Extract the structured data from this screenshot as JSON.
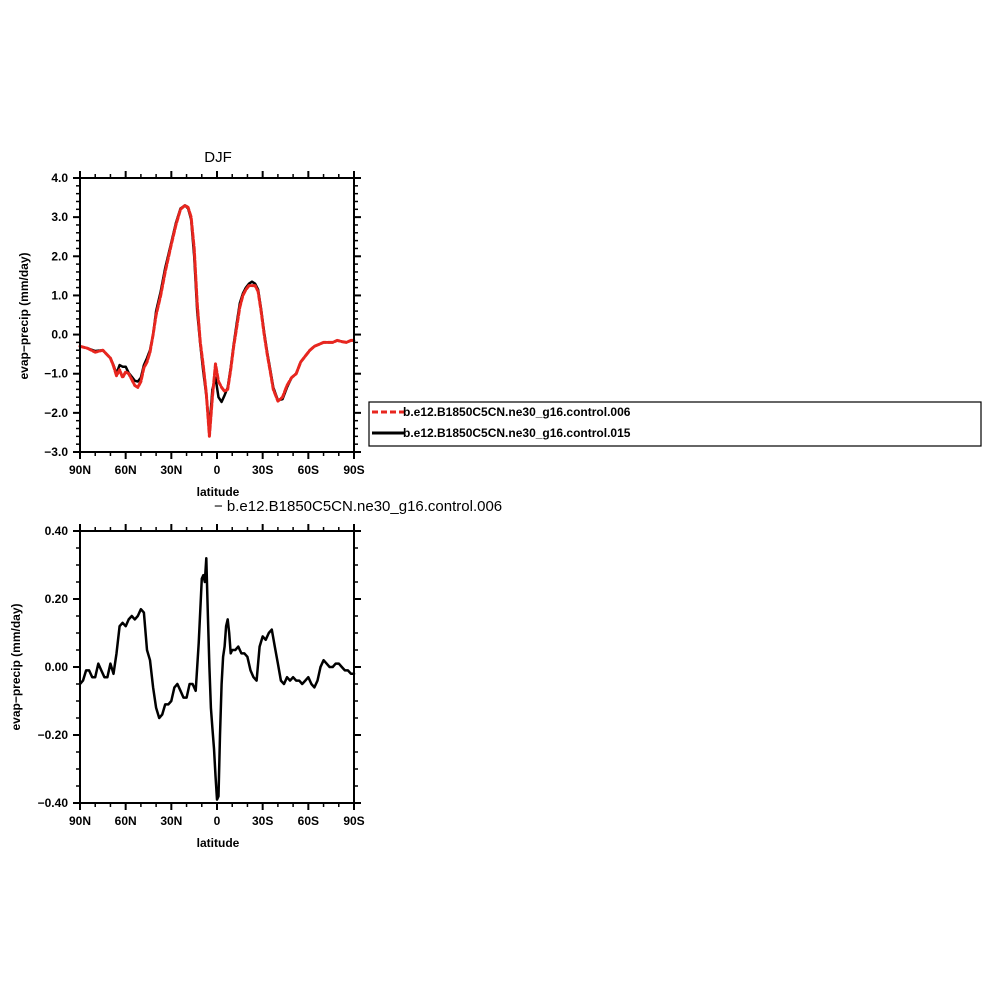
{
  "chart_data": [
    {
      "type": "line",
      "title": "DJF",
      "xlabel": "latitude",
      "ylabel": "evap−precip (mm/day)",
      "xlim": [
        90,
        -90
      ],
      "ylim": [
        -3.0,
        4.0
      ],
      "x_ticks": [
        90,
        60,
        30,
        0,
        -30,
        -60,
        -90
      ],
      "x_tick_labels": [
        "90N",
        "60N",
        "30N",
        "0",
        "30S",
        "60S",
        "90S"
      ],
      "y_ticks": [
        -3.0,
        -2.0,
        -1.0,
        0.0,
        1.0,
        2.0,
        3.0,
        4.0
      ],
      "y_tick_labels": [
        "−3.0",
        "−2.0",
        "−1.0",
        "0.0",
        "1.0",
        "2.0",
        "3.0",
        "4.0"
      ],
      "legend_position": "right",
      "series": [
        {
          "name": "b.e12.B1850C5CN.ne30_g16.control.006",
          "color": "#e8261f",
          "dashed": true,
          "x": [
            90,
            85,
            80,
            75,
            70,
            68,
            66,
            64,
            62,
            60,
            58,
            56,
            54,
            52,
            50,
            48,
            46,
            44,
            42,
            40,
            37,
            34,
            30,
            27,
            24,
            21,
            19,
            17,
            15,
            13,
            11,
            9,
            7,
            5,
            3,
            1,
            -1,
            -3,
            -5,
            -7,
            -9,
            -11,
            -13,
            -15,
            -17,
            -19,
            -21,
            -23,
            -25,
            -27,
            -29,
            -31,
            -33,
            -35,
            -37,
            -40,
            -43,
            -46,
            -49,
            -52,
            -55,
            -58,
            -61,
            -64,
            -67,
            -70,
            -73,
            -76,
            -79,
            -82,
            -85,
            -88,
            -90
          ],
          "y": [
            -0.3,
            -0.35,
            -0.45,
            -0.4,
            -0.6,
            -0.8,
            -1.05,
            -0.9,
            -1.1,
            -0.95,
            -1.0,
            -1.15,
            -1.3,
            -1.35,
            -1.2,
            -0.85,
            -0.7,
            -0.45,
            0.0,
            0.5,
            1.0,
            1.6,
            2.3,
            2.8,
            3.2,
            3.3,
            3.25,
            3.0,
            2.2,
            0.8,
            -0.2,
            -0.8,
            -1.5,
            -2.6,
            -1.6,
            -0.75,
            -1.2,
            -1.35,
            -1.45,
            -1.4,
            -0.9,
            -0.3,
            0.2,
            0.7,
            1.0,
            1.15,
            1.25,
            1.25,
            1.25,
            1.1,
            0.6,
            0.0,
            -0.5,
            -0.95,
            -1.4,
            -1.7,
            -1.6,
            -1.3,
            -1.1,
            -1.0,
            -0.7,
            -0.55,
            -0.4,
            -0.3,
            -0.25,
            -0.2,
            -0.2,
            -0.2,
            -0.15,
            -0.18,
            -0.2,
            -0.15,
            -0.15
          ]
        },
        {
          "name": "b.e12.B1850C5CN.ne30_g16.control.015",
          "color": "#000000",
          "dashed": false,
          "x": [
            90,
            85,
            80,
            75,
            70,
            68,
            66,
            64,
            62,
            60,
            58,
            56,
            54,
            52,
            50,
            48,
            46,
            44,
            42,
            40,
            37,
            34,
            30,
            27,
            24,
            21,
            19,
            17,
            15,
            13,
            11,
            9,
            7,
            5,
            3,
            1,
            -1,
            -3,
            -5,
            -7,
            -9,
            -11,
            -13,
            -15,
            -17,
            -19,
            -21,
            -23,
            -25,
            -27,
            -29,
            -31,
            -33,
            -35,
            -37,
            -40,
            -43,
            -46,
            -49,
            -52,
            -55,
            -58,
            -61,
            -64,
            -67,
            -70,
            -73,
            -76,
            -79,
            -82,
            -85,
            -88,
            -90
          ],
          "y": [
            -0.3,
            -0.35,
            -0.42,
            -0.4,
            -0.6,
            -0.78,
            -1.0,
            -0.78,
            -0.82,
            -0.82,
            -0.98,
            -1.08,
            -1.18,
            -1.2,
            -1.1,
            -0.78,
            -0.6,
            -0.4,
            0.0,
            0.6,
            1.1,
            1.7,
            2.35,
            2.85,
            3.22,
            3.3,
            3.22,
            2.95,
            2.0,
            0.6,
            -0.25,
            -0.95,
            -1.55,
            -2.4,
            -1.4,
            -1.1,
            -1.6,
            -1.72,
            -1.55,
            -1.35,
            -0.85,
            -0.25,
            0.3,
            0.8,
            1.05,
            1.2,
            1.3,
            1.35,
            1.3,
            1.15,
            0.65,
            0.05,
            -0.45,
            -0.9,
            -1.35,
            -1.68,
            -1.65,
            -1.35,
            -1.1,
            -1.0,
            -0.7,
            -0.55,
            -0.4,
            -0.3,
            -0.25,
            -0.2,
            -0.2,
            -0.2,
            -0.15,
            -0.18,
            -0.2,
            -0.15,
            -0.15
          ]
        }
      ]
    },
    {
      "type": "line",
      "title": "− b.e12.B1850C5CN.ne30_g16.control.006",
      "xlabel": "latitude",
      "ylabel": "evap−precip (mm/day)",
      "xlim": [
        90,
        -90
      ],
      "ylim": [
        -0.4,
        0.4
      ],
      "x_ticks": [
        90,
        60,
        30,
        0,
        -30,
        -60,
        -90
      ],
      "x_tick_labels": [
        "90N",
        "60N",
        "30N",
        "0",
        "30S",
        "60S",
        "90S"
      ],
      "y_ticks": [
        -0.4,
        -0.2,
        0.0,
        0.2,
        0.4
      ],
      "y_tick_labels": [
        "−0.40",
        "−0.20",
        "0.00",
        "0.20",
        "0.40"
      ],
      "series": [
        {
          "color": "#000000",
          "x": [
            90,
            88,
            86,
            84,
            82,
            80,
            78,
            76,
            74,
            72,
            70,
            68,
            66,
            64,
            62,
            60,
            58,
            56,
            54,
            52,
            50,
            48,
            46,
            44,
            42,
            40,
            38,
            36,
            34,
            32,
            30,
            28,
            26,
            24,
            22,
            20,
            18,
            16,
            14,
            12,
            10,
            9,
            8,
            7,
            6,
            5,
            4,
            3,
            2,
            1,
            0,
            -1,
            -2,
            -3,
            -4,
            -5,
            -6,
            -7,
            -8,
            -9,
            -10,
            -12,
            -14,
            -16,
            -18,
            -20,
            -22,
            -24,
            -26,
            -28,
            -30,
            -32,
            -34,
            -36,
            -38,
            -40,
            -42,
            -44,
            -46,
            -48,
            -50,
            -52,
            -54,
            -56,
            -58,
            -60,
            -62,
            -64,
            -66,
            -68,
            -70,
            -72,
            -74,
            -76,
            -78,
            -80,
            -82,
            -84,
            -86,
            -88,
            -90
          ],
          "y": [
            -0.05,
            -0.04,
            -0.01,
            -0.01,
            -0.03,
            -0.03,
            0.01,
            -0.01,
            -0.03,
            -0.03,
            0.01,
            -0.02,
            0.04,
            0.12,
            0.13,
            0.12,
            0.14,
            0.15,
            0.14,
            0.15,
            0.17,
            0.16,
            0.05,
            0.02,
            -0.06,
            -0.12,
            -0.15,
            -0.14,
            -0.11,
            -0.11,
            -0.1,
            -0.06,
            -0.05,
            -0.07,
            -0.09,
            -0.09,
            -0.05,
            -0.05,
            -0.07,
            0.07,
            0.26,
            0.27,
            0.25,
            0.32,
            0.15,
            0.0,
            -0.12,
            -0.18,
            -0.24,
            -0.32,
            -0.39,
            -0.38,
            -0.2,
            -0.05,
            0.03,
            0.06,
            0.12,
            0.14,
            0.1,
            0.04,
            0.05,
            0.05,
            0.06,
            0.04,
            0.04,
            0.03,
            -0.01,
            -0.03,
            -0.04,
            0.06,
            0.09,
            0.08,
            0.1,
            0.11,
            0.06,
            0.01,
            -0.04,
            -0.05,
            -0.03,
            -0.04,
            -0.03,
            -0.04,
            -0.04,
            -0.05,
            -0.04,
            -0.03,
            -0.05,
            -0.06,
            -0.04,
            0.0,
            0.02,
            0.01,
            0.0,
            0.0,
            0.01,
            0.01,
            0.0,
            -0.01,
            -0.01,
            -0.02,
            -0.02
          ]
        }
      ]
    }
  ]
}
